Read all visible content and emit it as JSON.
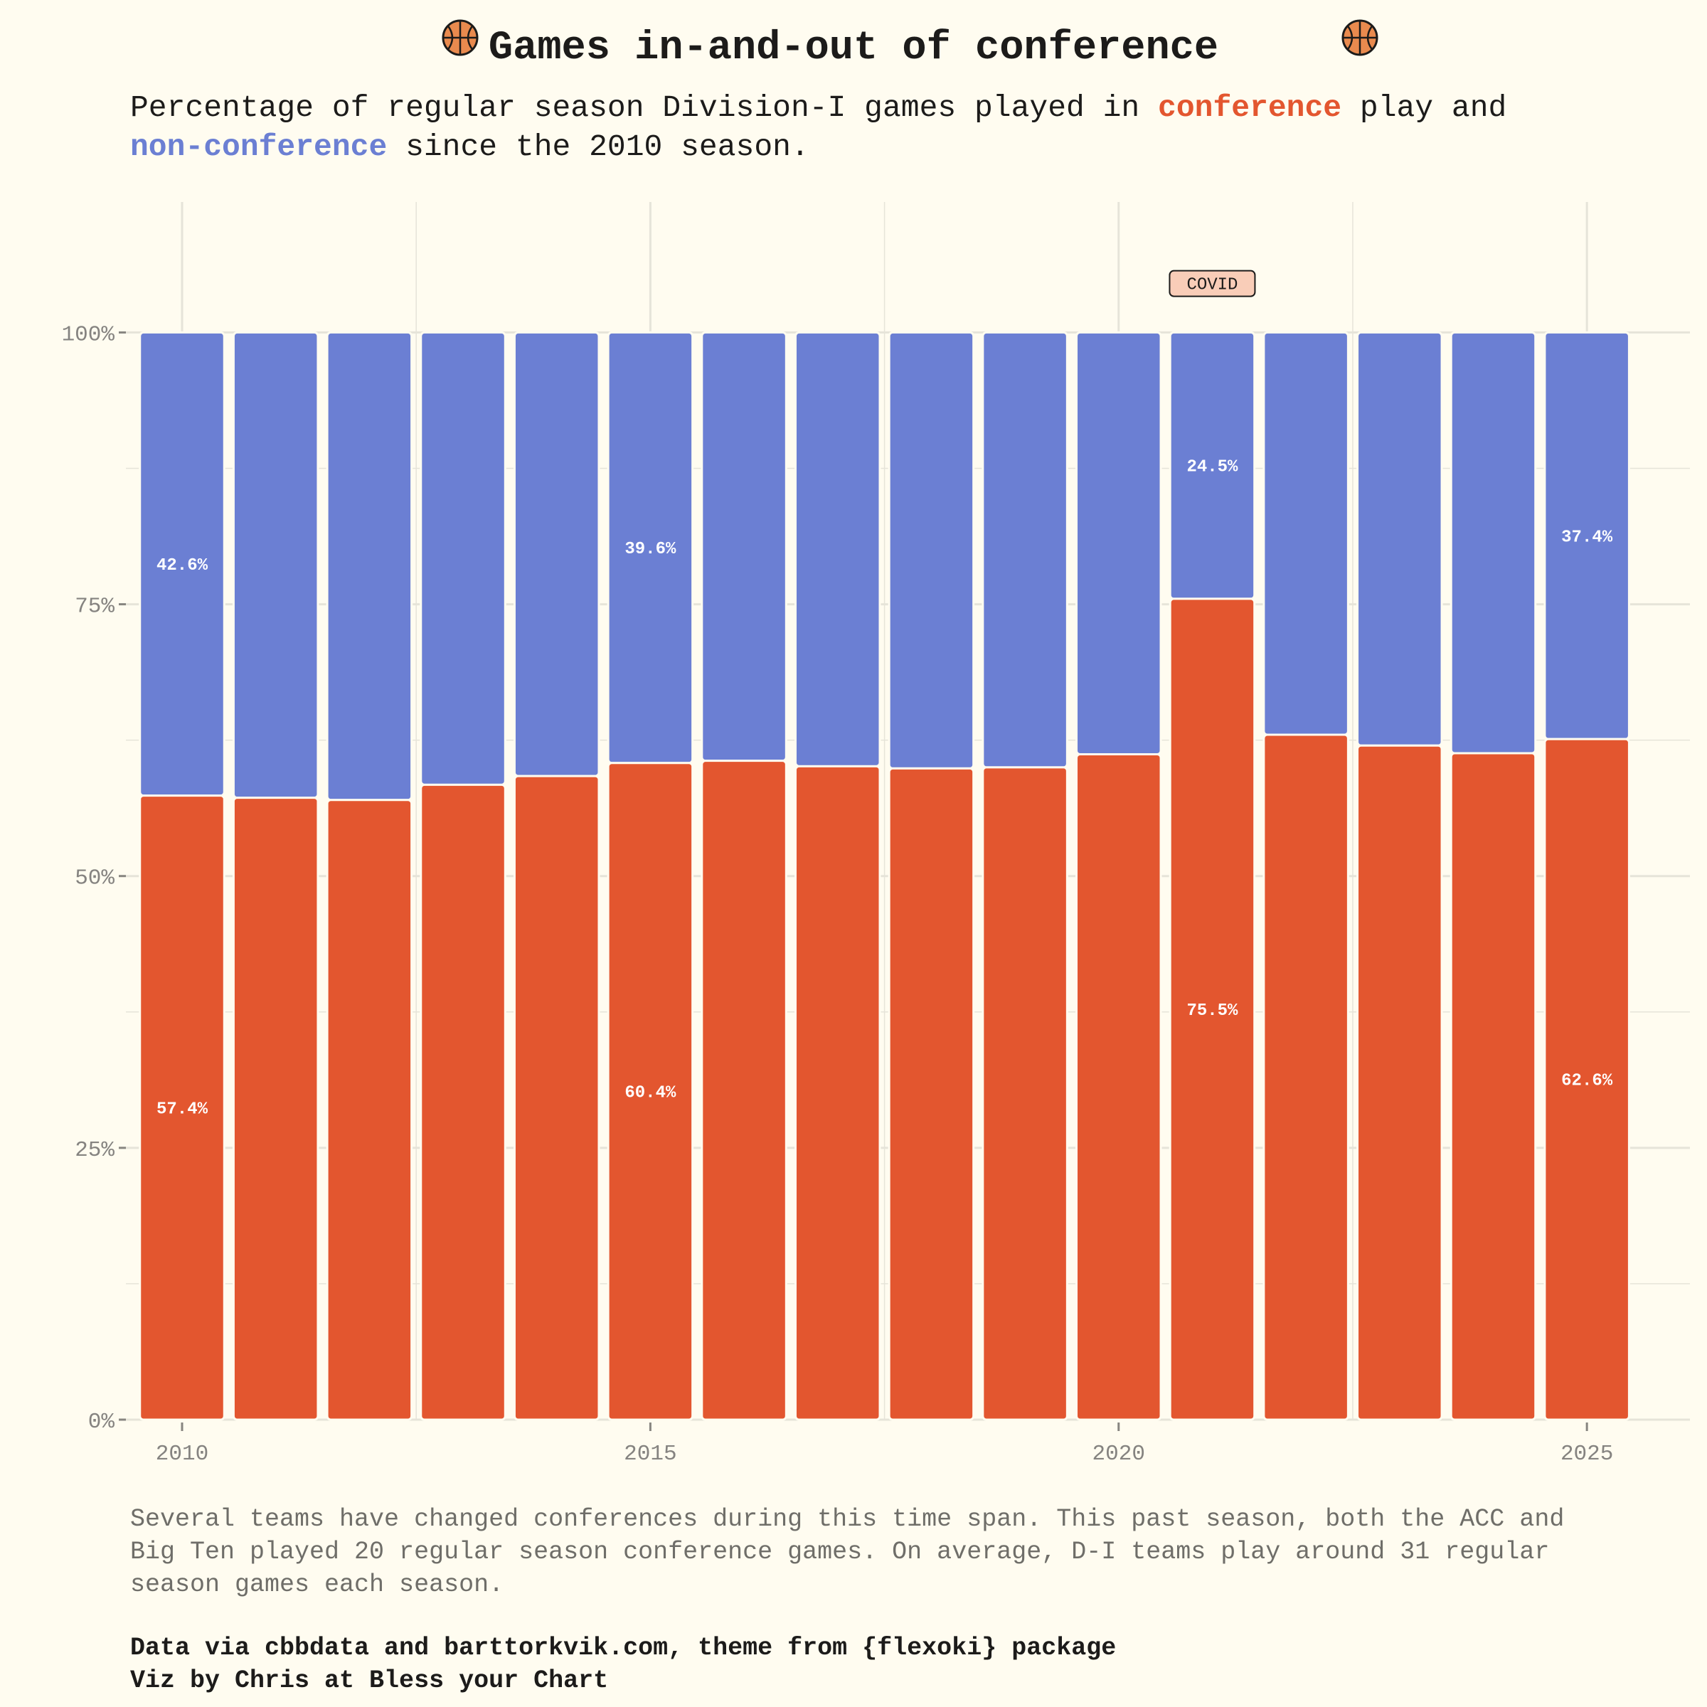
{
  "colors": {
    "background": "#FFFCF0",
    "conference": "#E3562F",
    "non_conference": "#6B7FD3",
    "grid": "#E6E4D9",
    "annotation_fill": "#F9CDB8",
    "basketball": "#E98A4E"
  },
  "header": {
    "icon_left": "basketball-icon",
    "title": "Games in-and-out of conference",
    "icon_right": "basketball-icon",
    "subtitle_part1": "Percentage of regular season Division-I games played in ",
    "subtitle_conference": "conference",
    "subtitle_part2": " play and",
    "subtitle_nonconference": "non-conference",
    "subtitle_part3": " since the 2010 season."
  },
  "chart_data": {
    "type": "bar",
    "stacked": true,
    "normalized": true,
    "categories": [
      2010,
      2011,
      2012,
      2013,
      2014,
      2015,
      2016,
      2017,
      2018,
      2019,
      2020,
      2021,
      2022,
      2023,
      2024,
      2025
    ],
    "series": [
      {
        "name": "conference",
        "color": "#E3562F",
        "values": [
          57.4,
          57.2,
          57.0,
          58.4,
          59.2,
          60.4,
          60.6,
          60.1,
          59.9,
          60.0,
          61.2,
          75.5,
          63.0,
          62.0,
          61.3,
          62.6
        ]
      },
      {
        "name": "non-conference",
        "color": "#6B7FD3",
        "values": [
          42.6,
          42.8,
          43.0,
          41.6,
          40.8,
          39.6,
          39.4,
          39.9,
          40.1,
          40.0,
          38.8,
          24.5,
          37.0,
          38.0,
          38.7,
          37.4
        ]
      }
    ],
    "data_labels": [
      {
        "year": 2010,
        "conference": "57.4%",
        "non_conference": "42.6%"
      },
      {
        "year": 2015,
        "conference": "60.4%",
        "non_conference": "39.6%"
      },
      {
        "year": 2021,
        "conference": "75.5%",
        "non_conference": "24.5%"
      },
      {
        "year": 2025,
        "conference": "62.6%",
        "non_conference": "37.4%"
      }
    ],
    "annotation": {
      "year": 2021,
      "text": "COVID"
    },
    "x_ticks": [
      2010,
      2015,
      2020,
      2025
    ],
    "y_ticks": [
      0,
      25,
      50,
      75,
      100
    ],
    "y_tick_labels": [
      "0%",
      "25%",
      "50%",
      "75%",
      "100%"
    ],
    "xlim": [
      2009.4,
      2026.1
    ],
    "ylim": [
      0,
      112
    ],
    "grid": true,
    "legend": "none"
  },
  "footer": {
    "caption_line1": "Several teams have changed conferences during this time span. This past season, both the ACC and",
    "caption_line2": "Big Ten played 20 regular season conference games. On average, D-I teams play around 31 regular",
    "caption_line3": "season games each season.",
    "credit_line1": "Data via cbbdata and barttorkvik.com, theme from {flexoki} package",
    "credit_line2": "Viz by Chris at Bless your Chart"
  }
}
